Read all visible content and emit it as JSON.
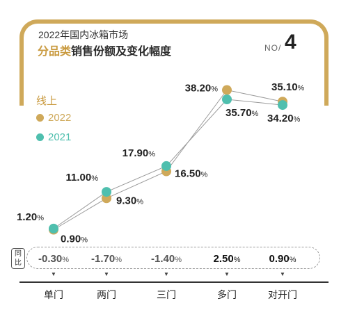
{
  "header": {
    "title_line1": "2022年国内冰箱市场",
    "title_accent": "分品类",
    "title_rest": "销售份额及变化幅度",
    "no_label": "NO/",
    "no_value": "4"
  },
  "legend": {
    "title": "线上",
    "items": [
      {
        "label": "2022",
        "color": "#cfa95a"
      },
      {
        "label": "2021",
        "color": "#4fbfae"
      }
    ]
  },
  "yoy": {
    "label_top": "同",
    "label_bottom": "比",
    "values": [
      "-0.30",
      "-1.70",
      "-1.40",
      "2.50",
      "0.90"
    ],
    "unit": "%",
    "colors": [
      "#555555",
      "#555555",
      "#555555",
      "#111111",
      "#111111"
    ]
  },
  "chart_data": {
    "type": "line",
    "categories": [
      "单门",
      "两门",
      "三门",
      "多门",
      "对开门"
    ],
    "unit": "%",
    "series": [
      {
        "name": "2022",
        "color": "#cfa95a",
        "values": [
          0.9,
          9.3,
          16.5,
          38.2,
          35.1
        ]
      },
      {
        "name": "2021",
        "color": "#4fbfae",
        "values": [
          1.2,
          11.0,
          17.9,
          35.7,
          34.2
        ]
      }
    ],
    "labels_2022": [
      "0.90",
      "9.30",
      "16.50",
      "38.20",
      "35.10"
    ],
    "labels_2021": [
      "1.20",
      "11.00",
      "17.90",
      "35.70",
      "34.20"
    ],
    "ylim": [
      0,
      40
    ],
    "grid": false
  }
}
